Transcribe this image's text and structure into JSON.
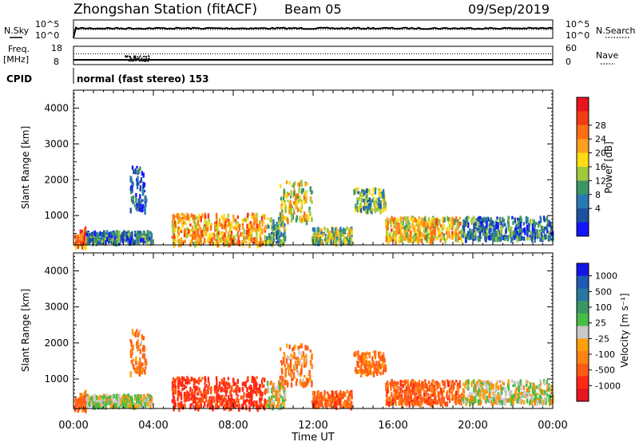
{
  "header": {
    "station": "Zhongshan Station (fitACF)",
    "beam": "Beam 05",
    "date": "09/Sep/2019"
  },
  "top_panels": {
    "nsky_label": "N.Sky",
    "nsearch_label": "N.Search",
    "freq_label_line1": "Freq.",
    "freq_label_line2": "[MHz]",
    "nave_label": "Nave",
    "cpid_label": "CPID",
    "cpid_text": "normal (fast stereo) 153",
    "noise_ticks": [
      "10^5",
      "10^0"
    ],
    "freq_ticks": [
      "18",
      "8"
    ],
    "nave_ticks": [
      "60",
      "0"
    ]
  },
  "axes": {
    "ylabel": "Slant Range [km]",
    "xlabel": "Time UT",
    "range_ticks": [
      "4000",
      "3000",
      "2000",
      "1000"
    ],
    "time_ticks": [
      "00:00",
      "04:00",
      "08:00",
      "12:00",
      "16:00",
      "20:00",
      "00:00"
    ]
  },
  "power_scale": {
    "title": "Power [dB]",
    "labels": [
      "28",
      "24",
      "20",
      "16",
      "12",
      "8",
      "4"
    ],
    "colors": [
      "#e8141e",
      "#f23c14",
      "#ff6e14",
      "#ffa01e",
      "#ffdc14",
      "#a0c83c",
      "#3c9664",
      "#2878b4",
      "#1e50a0",
      "#1414ff"
    ]
  },
  "velocity_scale": {
    "title": "Velocity [m s⁻¹]",
    "labels": [
      "1000",
      "500",
      "100",
      "25",
      "-25",
      "-100",
      "-500",
      "-1000"
    ],
    "colors": [
      "#1414e6",
      "#1e5ab4",
      "#2878a0",
      "#3c9664",
      "#46be46",
      "#c8c8c8",
      "#ffa00a",
      "#ff8214",
      "#ff5a14",
      "#ff2814",
      "#e6141e"
    ]
  },
  "chart_data": {
    "type": "heatmap",
    "time_range_hours": [
      0,
      24
    ],
    "range_limits_km": [
      180,
      4500
    ],
    "panels": [
      "Power",
      "Velocity"
    ],
    "power_db_range": [
      0,
      30
    ],
    "velocity_range_ms": [
      -1000,
      1000
    ],
    "scatter_regions": [
      {
        "start": 0.0,
        "end": 0.6,
        "rmin": 200,
        "rmax": 700,
        "power": 24,
        "velocity": -150
      },
      {
        "start": 0.6,
        "end": 3.9,
        "rmin": 300,
        "rmax": 600,
        "power": 9,
        "velocity": 80
      },
      {
        "start": 2.8,
        "end": 3.6,
        "rmin": 1200,
        "rmax": 2400,
        "power": 7,
        "velocity": -90
      },
      {
        "start": 4.9,
        "end": 9.6,
        "rmin": 250,
        "rmax": 1100,
        "power": 21,
        "velocity": -300
      },
      {
        "start": 9.6,
        "end": 10.6,
        "rmin": 250,
        "rmax": 1000,
        "power": 13,
        "velocity": 40
      },
      {
        "start": 10.3,
        "end": 11.9,
        "rmin": 900,
        "rmax": 2000,
        "power": 18,
        "velocity": -70
      },
      {
        "start": 11.9,
        "end": 13.9,
        "rmin": 300,
        "rmax": 700,
        "power": 15,
        "velocity": -150
      },
      {
        "start": 14.0,
        "end": 15.6,
        "rmin": 1200,
        "rmax": 1800,
        "power": 13,
        "velocity": -120
      },
      {
        "start": 15.6,
        "end": 19.4,
        "rmin": 350,
        "rmax": 1000,
        "power": 19,
        "velocity": -160
      },
      {
        "start": 19.4,
        "end": 24.0,
        "rmin": 400,
        "rmax": 1000,
        "power": 9,
        "velocity": 60
      }
    ]
  }
}
